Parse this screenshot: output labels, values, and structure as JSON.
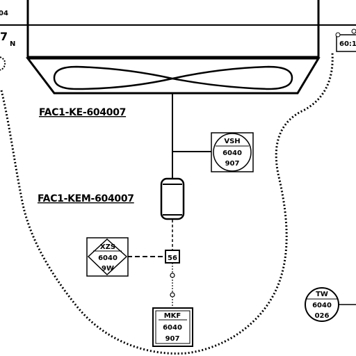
{
  "equipment": {
    "fan_tag": "FAC1-KE-604007",
    "motor_tag": "FAC1-KEM-604007"
  },
  "instruments": {
    "vsh": {
      "code": "VSH",
      "loop": "6040",
      "num": "907"
    },
    "xzs": {
      "code": "XZS",
      "loop": "6040",
      "num": "9W"
    },
    "mkf": {
      "code": "MKF",
      "loop": "6040",
      "num": "907"
    },
    "tw": {
      "code": "TW",
      "loop": "6040",
      "num": "026"
    },
    "junction": {
      "label": "56"
    }
  },
  "edge_fragments": {
    "top_left": "04",
    "left_mark": "7",
    "left_small": "N",
    "right_mark": "60:1"
  },
  "colors": {
    "line": "#000000",
    "background": "#ffffff"
  }
}
